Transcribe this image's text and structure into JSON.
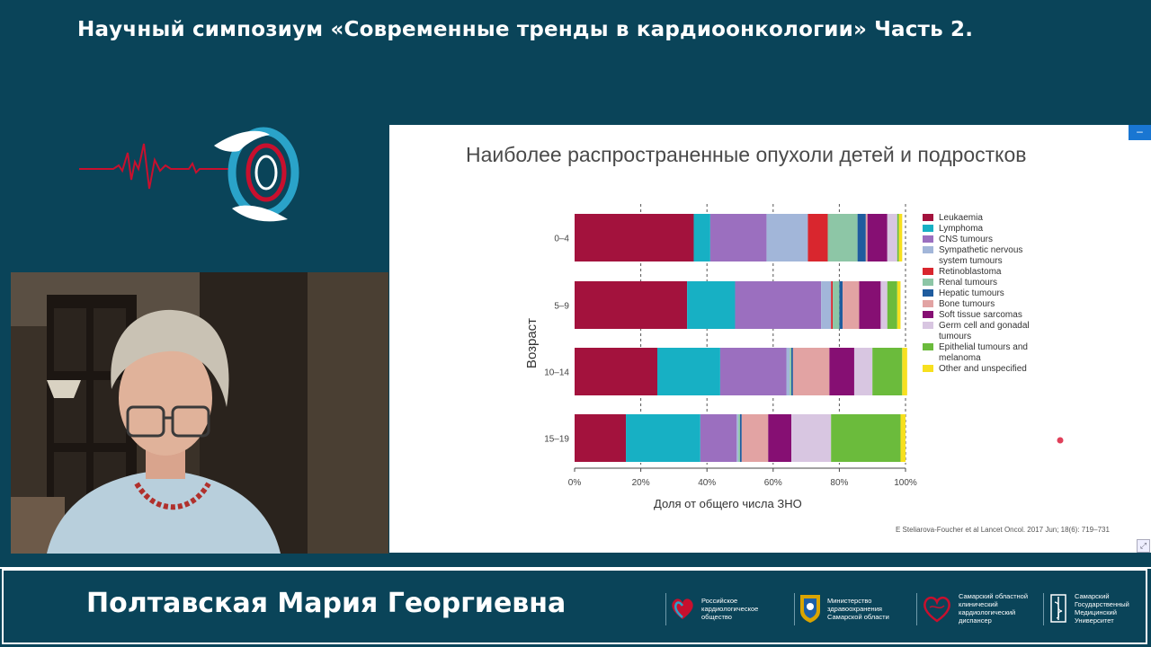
{
  "header": {
    "title": "Научный симпозиум «Современные тренды в кардиоонкологии» Часть 2."
  },
  "slide": {
    "title": "Наиболее распространенные  опухоли детей и подростков",
    "citation": "E Steliarova-Foucher et al Lancet Oncol. 2017 Jun; 18(6): 719–731",
    "controls": {
      "minimize_symbol": "–",
      "expand_symbol": "⤢"
    }
  },
  "chart_data": {
    "type": "bar",
    "orientation": "horizontal",
    "stacked": true,
    "categories": [
      "0–4",
      "5–9",
      "10–14",
      "15–19"
    ],
    "xlabel": "Доля от общего числа ЗНО",
    "ylabel": "Возраст",
    "xlim": [
      0,
      100
    ],
    "xticks": [
      "0%",
      "20%",
      "40%",
      "60%",
      "80%",
      "100%"
    ],
    "grid": "dashed vertical at 20% intervals",
    "legend_position": "right",
    "series": [
      {
        "name": "Leukaemia",
        "color": "#a3123d",
        "values": [
          36,
          34,
          25,
          15.5
        ]
      },
      {
        "name": "Lymphoma",
        "color": "#17b0c4",
        "values": [
          5,
          14.5,
          19,
          22.5
        ]
      },
      {
        "name": "CNS tumours",
        "color": "#9b6fbf",
        "values": [
          17,
          26,
          20,
          11
        ]
      },
      {
        "name": "Sympathetic nervous system tumours",
        "color": "#a2b6d9",
        "values": [
          12.5,
          3,
          1,
          0.5
        ]
      },
      {
        "name": "Retinoblastoma",
        "color": "#d9262e",
        "values": [
          6,
          0.5,
          0,
          0
        ]
      },
      {
        "name": "Renal tumours",
        "color": "#8dc6a6",
        "values": [
          9,
          2,
          0.5,
          0.5
        ]
      },
      {
        "name": "Hepatic tumours",
        "color": "#1f5c9e",
        "values": [
          2.5,
          1,
          0.5,
          0.5
        ]
      },
      {
        "name": "Bone tumours",
        "color": "#e2a3a3",
        "values": [
          0.5,
          5,
          11,
          8
        ]
      },
      {
        "name": "Soft tissue sarcomas",
        "color": "#860f73",
        "values": [
          6,
          6.5,
          7.5,
          7
        ]
      },
      {
        "name": "Germ cell and gonadal tumours",
        "color": "#d8c6e1",
        "values": [
          3,
          2,
          5.5,
          12
        ]
      },
      {
        "name": "Epithelial tumours and melanoma",
        "color": "#6bbb3c",
        "values": [
          0.5,
          3,
          9,
          21
        ]
      },
      {
        "name": "Other and unspecified",
        "color": "#f7e01f",
        "values": [
          1,
          1,
          1.5,
          1.5
        ]
      }
    ],
    "legend_lines": [
      [
        "Leukaemia"
      ],
      [
        "Lymphoma"
      ],
      [
        "CNS tumours"
      ],
      [
        "Sympathetic nervous",
        "system tumours"
      ],
      [
        "Retinoblastoma"
      ],
      [
        "Renal tumours"
      ],
      [
        "Hepatic tumours"
      ],
      [
        "Bone tumours"
      ],
      [
        "Soft tissue sarcomas"
      ],
      [
        "Germ cell and gonadal",
        "tumours"
      ],
      [
        "Epithelial tumours and",
        "melanoma"
      ],
      [
        "Other and unspecified"
      ]
    ]
  },
  "speaker": {
    "name": "Полтавская Мария Георгиевна"
  },
  "partners": [
    {
      "label": "Российское\nкардиологическое\nобщество",
      "icon": "heart-logo-icon"
    },
    {
      "label": "Министерство\nздравоохранения\nСамарской области",
      "icon": "emblem-icon"
    },
    {
      "label": "Самарский областной\nклинический\nкардиологический\nдиспансер",
      "icon": "heart-line-icon"
    },
    {
      "label": "Самарский\nГосударственный\nМедицинский\nУниверситет",
      "icon": "caduceus-icon"
    }
  ],
  "colors": {
    "background": "#0a4459",
    "accent_red": "#c8102e",
    "accent_blue": "#2aa3c9"
  }
}
